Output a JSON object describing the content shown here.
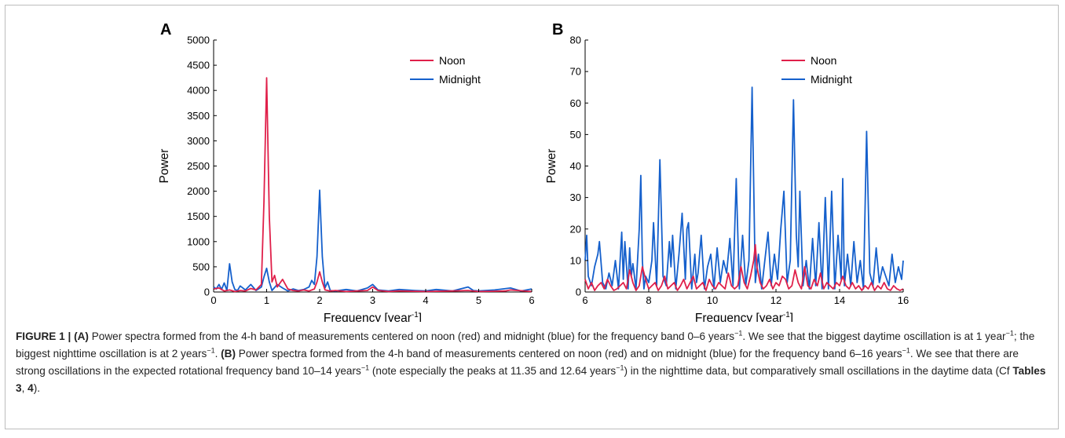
{
  "chart_data": [
    {
      "type": "line",
      "panel_label": "A",
      "xlabel_main": "Frequency [year",
      "xlabel_sup": "-1",
      "xlabel_end": "]",
      "ylabel": "Power",
      "xlim": [
        0,
        6
      ],
      "ylim": [
        0,
        5000
      ],
      "x_ticks": [
        "0",
        "1",
        "2",
        "3",
        "4",
        "5",
        "6"
      ],
      "y_ticks": [
        "0",
        "500",
        "1000",
        "1500",
        "2000",
        "2500",
        "3000",
        "3500",
        "4000",
        "4500",
        "5000"
      ],
      "legend_position": "top-right",
      "series": [
        {
          "name": "Noon",
          "color": "#e0204a",
          "x": [
            0,
            0.1,
            0.2,
            0.3,
            0.4,
            0.5,
            0.6,
            0.7,
            0.8,
            0.9,
            0.95,
            1.0,
            1.05,
            1.1,
            1.15,
            1.2,
            1.3,
            1.4,
            1.5,
            1.6,
            1.7,
            1.8,
            1.9,
            1.95,
            2.0,
            2.05,
            2.1,
            2.2,
            2.3,
            2.5,
            2.7,
            2.9,
            3.0,
            3.1,
            3.3,
            3.5,
            4.0,
            4.5,
            4.8,
            5.0,
            5.5,
            5.6,
            6.0
          ],
          "y": [
            60,
            80,
            20,
            40,
            10,
            30,
            20,
            70,
            40,
            150,
            1800,
            4250,
            1500,
            200,
            330,
            100,
            250,
            60,
            30,
            20,
            40,
            20,
            60,
            200,
            400,
            200,
            40,
            20,
            30,
            10,
            20,
            30,
            100,
            30,
            10,
            20,
            10,
            20,
            30,
            10,
            20,
            40,
            10
          ]
        },
        {
          "name": "Midnight",
          "color": "#1560cc",
          "x": [
            0,
            0.05,
            0.1,
            0.15,
            0.2,
            0.25,
            0.3,
            0.35,
            0.4,
            0.45,
            0.5,
            0.6,
            0.7,
            0.8,
            0.9,
            0.95,
            1.0,
            1.05,
            1.1,
            1.2,
            1.3,
            1.4,
            1.5,
            1.6,
            1.7,
            1.8,
            1.85,
            1.9,
            1.95,
            2.0,
            2.05,
            2.1,
            2.15,
            2.2,
            2.3,
            2.5,
            2.7,
            2.9,
            3.0,
            3.1,
            3.3,
            3.5,
            3.8,
            4.0,
            4.2,
            4.5,
            4.8,
            4.9,
            5.0,
            5.3,
            5.6,
            5.8,
            6.0
          ],
          "y": [
            100,
            60,
            150,
            50,
            180,
            30,
            560,
            200,
            50,
            30,
            120,
            40,
            150,
            30,
            100,
            300,
            470,
            200,
            30,
            150,
            80,
            20,
            60,
            30,
            50,
            100,
            230,
            150,
            700,
            2020,
            700,
            80,
            200,
            30,
            20,
            50,
            20,
            80,
            150,
            40,
            20,
            50,
            30,
            20,
            50,
            20,
            100,
            30,
            20,
            40,
            80,
            20,
            60
          ]
        }
      ]
    },
    {
      "type": "line",
      "panel_label": "B",
      "xlabel_main": "Frequency [year",
      "xlabel_sup": "-1",
      "xlabel_end": "]",
      "ylabel": "Power",
      "xlim": [
        6,
        16
      ],
      "ylim": [
        0,
        80
      ],
      "x_ticks": [
        "6",
        "8",
        "10",
        "12",
        "14",
        "16"
      ],
      "y_ticks": [
        "0",
        "10",
        "20",
        "30",
        "40",
        "50",
        "60",
        "70",
        "80"
      ],
      "legend_position": "top-right",
      "series": [
        {
          "name": "Noon",
          "color": "#e0204a",
          "x": [
            6.0,
            6.1,
            6.2,
            6.3,
            6.4,
            6.5,
            6.6,
            6.7,
            6.8,
            6.9,
            7.0,
            7.1,
            7.2,
            7.3,
            7.4,
            7.5,
            7.6,
            7.7,
            7.8,
            7.9,
            8.0,
            8.1,
            8.2,
            8.3,
            8.4,
            8.5,
            8.6,
            8.7,
            8.8,
            8.9,
            9.0,
            9.1,
            9.2,
            9.3,
            9.4,
            9.5,
            9.6,
            9.7,
            9.8,
            9.9,
            10.0,
            10.1,
            10.2,
            10.3,
            10.4,
            10.5,
            10.6,
            10.7,
            10.8,
            10.9,
            11.0,
            11.1,
            11.2,
            11.3,
            11.35,
            11.4,
            11.5,
            11.6,
            11.7,
            11.8,
            11.9,
            12.0,
            12.1,
            12.2,
            12.3,
            12.4,
            12.5,
            12.6,
            12.7,
            12.8,
            12.9,
            13.0,
            13.1,
            13.2,
            13.3,
            13.4,
            13.5,
            13.6,
            13.7,
            13.8,
            13.9,
            14.0,
            14.1,
            14.2,
            14.3,
            14.4,
            14.5,
            14.6,
            14.7,
            14.8,
            14.9,
            15.0,
            15.1,
            15.2,
            15.3,
            15.4,
            15.5,
            15.6,
            15.7,
            15.8,
            15.9,
            16.0
          ],
          "y": [
            4,
            1,
            3,
            0.5,
            2,
            3,
            1,
            4,
            2,
            0.5,
            1,
            2,
            3,
            1,
            7,
            3,
            0.5,
            2,
            8,
            4,
            1,
            2,
            3,
            0.5,
            2,
            5,
            1,
            2,
            3,
            0.5,
            2,
            4,
            1,
            3,
            5,
            1,
            2,
            3,
            0.5,
            4,
            2,
            1,
            3,
            2,
            1,
            6,
            2,
            1,
            2,
            8,
            3,
            1,
            5,
            10,
            15,
            8,
            3,
            1,
            2,
            4,
            1,
            3,
            2,
            5,
            4,
            1,
            2,
            7,
            3,
            1,
            8,
            2,
            1,
            4,
            2,
            6,
            1,
            3,
            2,
            1,
            3,
            2,
            5,
            2,
            1,
            3,
            1,
            2,
            0.5,
            2,
            1,
            3,
            0.5,
            2,
            1,
            3,
            1,
            0.5,
            2,
            1,
            0.5,
            1
          ]
        },
        {
          "name": "Midnight",
          "color": "#1560cc",
          "x": [
            6.0,
            6.05,
            6.1,
            6.2,
            6.3,
            6.4,
            6.45,
            6.55,
            6.65,
            6.75,
            6.85,
            6.95,
            7.05,
            7.15,
            7.2,
            7.25,
            7.35,
            7.4,
            7.45,
            7.5,
            7.6,
            7.7,
            7.75,
            7.8,
            7.85,
            7.9,
            8.0,
            8.1,
            8.15,
            8.25,
            8.35,
            8.45,
            8.55,
            8.65,
            8.7,
            8.75,
            8.85,
            8.95,
            9.05,
            9.15,
            9.2,
            9.25,
            9.35,
            9.45,
            9.5,
            9.55,
            9.65,
            9.75,
            9.85,
            9.95,
            10.05,
            10.15,
            10.25,
            10.35,
            10.45,
            10.55,
            10.65,
            10.75,
            10.85,
            10.95,
            11.05,
            11.15,
            11.25,
            11.35,
            11.45,
            11.55,
            11.65,
            11.75,
            11.85,
            11.95,
            12.05,
            12.15,
            12.25,
            12.35,
            12.45,
            12.55,
            12.64,
            12.7,
            12.75,
            12.85,
            12.95,
            13.05,
            13.15,
            13.25,
            13.35,
            13.45,
            13.55,
            13.65,
            13.75,
            13.85,
            13.95,
            14.05,
            14.1,
            14.15,
            14.25,
            14.35,
            14.45,
            14.55,
            14.65,
            14.75,
            14.85,
            14.95,
            15.05,
            15.15,
            15.25,
            15.35,
            15.45,
            15.55,
            15.65,
            15.75,
            15.85,
            15.95,
            16.0
          ],
          "y": [
            10,
            18,
            5,
            2,
            8,
            12,
            16,
            3,
            1,
            6,
            2,
            10,
            1,
            19,
            4,
            16,
            1,
            14,
            5,
            9,
            1,
            20,
            37,
            10,
            1,
            5,
            3,
            10,
            22,
            2,
            42,
            5,
            2,
            16,
            8,
            18,
            1,
            12,
            25,
            4,
            20,
            22,
            1,
            12,
            3,
            6,
            18,
            1,
            8,
            12,
            1,
            14,
            3,
            10,
            6,
            17,
            2,
            36,
            1,
            18,
            2,
            10,
            65,
            3,
            12,
            1,
            10,
            19,
            2,
            12,
            4,
            20,
            32,
            3,
            10,
            61,
            18,
            8,
            32,
            2,
            10,
            1,
            17,
            2,
            22,
            1,
            30,
            1,
            32,
            1,
            18,
            4,
            36,
            2,
            12,
            2,
            16,
            3,
            10,
            1,
            51,
            6,
            2,
            14,
            3,
            8,
            5,
            2,
            12,
            3,
            8,
            4,
            10
          ]
        }
      ]
    }
  ],
  "caption": {
    "label": "FIGURE 1 |",
    "a_label": "(A)",
    "a_text_1": " Power spectra formed from the 4-h band of measurements centered on noon (red) and midnight (blue) for the frequency band 0–6 years",
    "a_sup_1": "−1",
    "a_text_2": ". We see that the biggest daytime oscillation is at 1 year",
    "a_sup_2": "−1",
    "a_text_3": "; the biggest nighttime oscillation is at 2 years",
    "a_sup_3": "−1",
    "a_text_4": ". ",
    "b_label": "(B)",
    "b_text_1": " Power spectra formed from the 4-h band of measurements centered on noon (red) and on midnight (blue) for the frequency band 6–16 years",
    "b_sup_1": "−1",
    "b_text_2": ". We see that there are strong oscillations in the expected rotational frequency band 10–14 years",
    "b_sup_2": "−1",
    "b_text_3": " (note especially the peaks at 11.35 and 12.64 years",
    "b_sup_3": "−1",
    "b_text_4": ") in the nighttime data, but comparatively small oscillations in the daytime data (Cf ",
    "tables_ref": "Tables 3",
    "sep": ", ",
    "tables_ref_2": "4",
    "end": ")."
  }
}
